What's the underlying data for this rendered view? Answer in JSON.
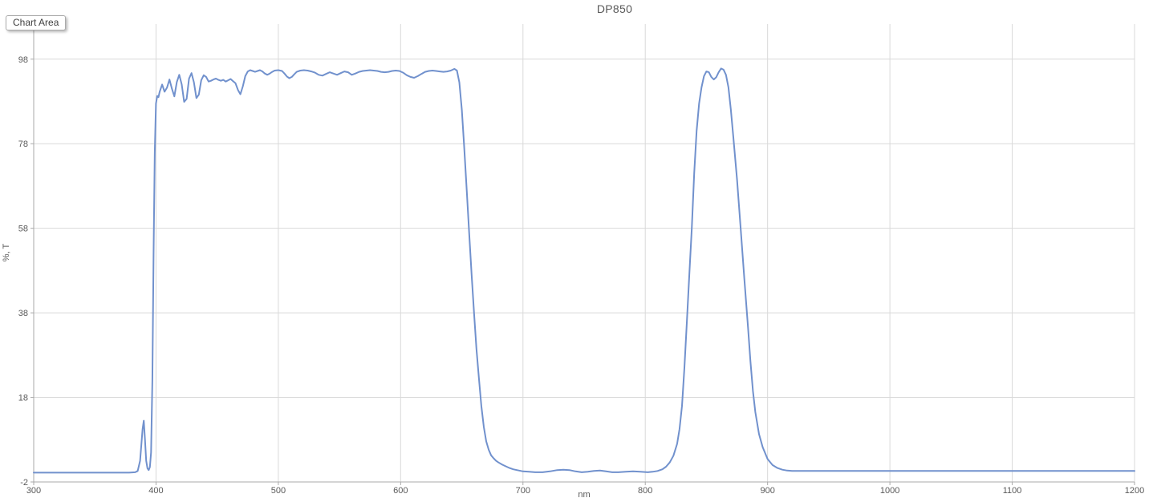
{
  "tooltip": {
    "label": "Chart Area"
  },
  "colors": {
    "line": "#7191CD",
    "gridline": "#D9D9D9",
    "axis": "#A9A9A9",
    "text": "#595959",
    "background": "#FFFFFF"
  },
  "chart_data": {
    "type": "line",
    "title": "DP850",
    "xlabel": "nm",
    "ylabel": "%, T",
    "xlim": [
      300,
      1200
    ],
    "ylim": [
      -2,
      106.3
    ],
    "x_ticks": [
      300,
      400,
      500,
      600,
      700,
      800,
      900,
      1000,
      1100,
      1200
    ],
    "y_ticks": [
      -2,
      18,
      38,
      58,
      78,
      98
    ],
    "grid": true,
    "legend": "none",
    "series": [
      {
        "name": "DP850",
        "color": "#7191CD",
        "points": [
          [
            300,
            0.2
          ],
          [
            310,
            0.2
          ],
          [
            320,
            0.2
          ],
          [
            330,
            0.2
          ],
          [
            340,
            0.2
          ],
          [
            350,
            0.2
          ],
          [
            360,
            0.2
          ],
          [
            370,
            0.2
          ],
          [
            378,
            0.2
          ],
          [
            383,
            0.3
          ],
          [
            385,
            0.6
          ],
          [
            387,
            3
          ],
          [
            389,
            10.5
          ],
          [
            390,
            12.5
          ],
          [
            391,
            8
          ],
          [
            392,
            3
          ],
          [
            393,
            1.2
          ],
          [
            394,
            0.8
          ],
          [
            395,
            1.5
          ],
          [
            396,
            5
          ],
          [
            397,
            22
          ],
          [
            398,
            52
          ],
          [
            399,
            76
          ],
          [
            400,
            87.5
          ],
          [
            401,
            89.3
          ],
          [
            402,
            89.0
          ],
          [
            403,
            90.3
          ],
          [
            405,
            92.0
          ],
          [
            407,
            90.3
          ],
          [
            409,
            91.3
          ],
          [
            411,
            93.2
          ],
          [
            413,
            91.0
          ],
          [
            415,
            89.2
          ],
          [
            417,
            92.6
          ],
          [
            419,
            94.3
          ],
          [
            421,
            92.0
          ],
          [
            423,
            87.9
          ],
          [
            425,
            88.6
          ],
          [
            427,
            93.4
          ],
          [
            429,
            94.7
          ],
          [
            431,
            92.5
          ],
          [
            433,
            88.8
          ],
          [
            435,
            89.6
          ],
          [
            437,
            93.0
          ],
          [
            439,
            94.2
          ],
          [
            441,
            93.8
          ],
          [
            443,
            92.7
          ],
          [
            445,
            92.9
          ],
          [
            447,
            93.2
          ],
          [
            449,
            93.4
          ],
          [
            451,
            93.1
          ],
          [
            453,
            92.9
          ],
          [
            455,
            93.1
          ],
          [
            457,
            92.7
          ],
          [
            459,
            93.0
          ],
          [
            461,
            93.3
          ],
          [
            463,
            92.8
          ],
          [
            465,
            92.3
          ],
          [
            467,
            90.7
          ],
          [
            469,
            89.7
          ],
          [
            471,
            91.6
          ],
          [
            473,
            94.0
          ],
          [
            475,
            95.1
          ],
          [
            477,
            95.4
          ],
          [
            479,
            95.2
          ],
          [
            481,
            95.0
          ],
          [
            483,
            95.2
          ],
          [
            485,
            95.4
          ],
          [
            487,
            95.1
          ],
          [
            489,
            94.6
          ],
          [
            491,
            94.3
          ],
          [
            493,
            94.6
          ],
          [
            495,
            95.0
          ],
          [
            497,
            95.3
          ],
          [
            500,
            95.4
          ],
          [
            503,
            95.2
          ],
          [
            505,
            94.6
          ],
          [
            507,
            93.9
          ],
          [
            509,
            93.5
          ],
          [
            511,
            93.8
          ],
          [
            513,
            94.4
          ],
          [
            515,
            95.0
          ],
          [
            518,
            95.3
          ],
          [
            521,
            95.4
          ],
          [
            524,
            95.3
          ],
          [
            527,
            95.1
          ],
          [
            530,
            94.8
          ],
          [
            533,
            94.3
          ],
          [
            536,
            94.1
          ],
          [
            539,
            94.5
          ],
          [
            542,
            94.9
          ],
          [
            545,
            94.6
          ],
          [
            548,
            94.3
          ],
          [
            551,
            94.7
          ],
          [
            554,
            95.1
          ],
          [
            557,
            94.9
          ],
          [
            560,
            94.3
          ],
          [
            563,
            94.6
          ],
          [
            566,
            95.0
          ],
          [
            569,
            95.2
          ],
          [
            572,
            95.3
          ],
          [
            575,
            95.4
          ],
          [
            578,
            95.3
          ],
          [
            581,
            95.2
          ],
          [
            584,
            95.0
          ],
          [
            587,
            94.9
          ],
          [
            590,
            95.0
          ],
          [
            593,
            95.2
          ],
          [
            596,
            95.3
          ],
          [
            599,
            95.2
          ],
          [
            602,
            94.8
          ],
          [
            605,
            94.2
          ],
          [
            608,
            93.8
          ],
          [
            611,
            93.6
          ],
          [
            614,
            94.0
          ],
          [
            617,
            94.5
          ],
          [
            620,
            95.0
          ],
          [
            623,
            95.2
          ],
          [
            626,
            95.3
          ],
          [
            629,
            95.2
          ],
          [
            632,
            95.1
          ],
          [
            635,
            95.0
          ],
          [
            638,
            95.1
          ],
          [
            641,
            95.3
          ],
          [
            644,
            95.7
          ],
          [
            646,
            95.3
          ],
          [
            648,
            92.5
          ],
          [
            650,
            86
          ],
          [
            652,
            77
          ],
          [
            654,
            67
          ],
          [
            656,
            57
          ],
          [
            658,
            47
          ],
          [
            660,
            38
          ],
          [
            662,
            29.5
          ],
          [
            664,
            22.5
          ],
          [
            666,
            16
          ],
          [
            668,
            11
          ],
          [
            670,
            7.6
          ],
          [
            672,
            5.6
          ],
          [
            674,
            4.3
          ],
          [
            676,
            3.6
          ],
          [
            678,
            3.0
          ],
          [
            680,
            2.6
          ],
          [
            683,
            2.1
          ],
          [
            686,
            1.7
          ],
          [
            689,
            1.3
          ],
          [
            692,
            1.0
          ],
          [
            695,
            0.8
          ],
          [
            700,
            0.5
          ],
          [
            705,
            0.4
          ],
          [
            710,
            0.3
          ],
          [
            716,
            0.3
          ],
          [
            722,
            0.5
          ],
          [
            728,
            0.8
          ],
          [
            733,
            0.9
          ],
          [
            738,
            0.8
          ],
          [
            743,
            0.5
          ],
          [
            748,
            0.3
          ],
          [
            753,
            0.4
          ],
          [
            758,
            0.6
          ],
          [
            763,
            0.7
          ],
          [
            768,
            0.5
          ],
          [
            773,
            0.3
          ],
          [
            778,
            0.3
          ],
          [
            784,
            0.4
          ],
          [
            790,
            0.5
          ],
          [
            796,
            0.4
          ],
          [
            802,
            0.3
          ],
          [
            806,
            0.4
          ],
          [
            810,
            0.6
          ],
          [
            814,
            1.0
          ],
          [
            817,
            1.6
          ],
          [
            820,
            2.6
          ],
          [
            823,
            4.2
          ],
          [
            826,
            7
          ],
          [
            828,
            10.5
          ],
          [
            830,
            16
          ],
          [
            832,
            25
          ],
          [
            834,
            36
          ],
          [
            836,
            47
          ],
          [
            838,
            58
          ],
          [
            840,
            71
          ],
          [
            842,
            81
          ],
          [
            844,
            87.5
          ],
          [
            846,
            91.3
          ],
          [
            848,
            94.0
          ],
          [
            850,
            95.1
          ],
          [
            852,
            94.9
          ],
          [
            854,
            93.8
          ],
          [
            856,
            93.2
          ],
          [
            858,
            93.7
          ],
          [
            860,
            94.9
          ],
          [
            862,
            95.8
          ],
          [
            864,
            95.5
          ],
          [
            866,
            94.3
          ],
          [
            868,
            91.3
          ],
          [
            870,
            86
          ],
          [
            872,
            79.5
          ],
          [
            875,
            69.5
          ],
          [
            878,
            58
          ],
          [
            881,
            46
          ],
          [
            884,
            34.5
          ],
          [
            886,
            26.5
          ],
          [
            888,
            19.5
          ],
          [
            890,
            14.5
          ],
          [
            893,
            9.3
          ],
          [
            896,
            6.2
          ],
          [
            900,
            3.4
          ],
          [
            904,
            2.0
          ],
          [
            908,
            1.3
          ],
          [
            912,
            0.9
          ],
          [
            916,
            0.7
          ],
          [
            920,
            0.6
          ],
          [
            930,
            0.6
          ],
          [
            945,
            0.6
          ],
          [
            960,
            0.6
          ],
          [
            980,
            0.6
          ],
          [
            1000,
            0.6
          ],
          [
            1030,
            0.6
          ],
          [
            1060,
            0.6
          ],
          [
            1100,
            0.6
          ],
          [
            1140,
            0.6
          ],
          [
            1170,
            0.6
          ],
          [
            1200,
            0.6
          ]
        ]
      }
    ]
  }
}
